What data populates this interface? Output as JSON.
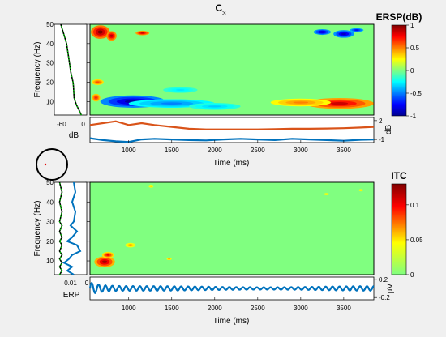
{
  "figure": {
    "title": "C3",
    "title_main": "C",
    "title_sub": "3"
  },
  "chart_data": [
    {
      "id": "ersp",
      "type": "heatmap",
      "title": "",
      "xlabel": "",
      "ylabel": "Frequency (Hz)",
      "xlim": [
        550,
        3850
      ],
      "ylim": [
        3,
        50
      ],
      "xticks": [
        1000,
        1500,
        2000,
        2500,
        3000,
        3500
      ],
      "yticks": [
        10,
        20,
        30,
        40,
        50
      ],
      "colorbar": {
        "title": "ERSP(dB)",
        "range": [
          -1,
          1
        ],
        "ticks": [
          "1",
          "0.5",
          "0",
          "-0.5",
          "-1"
        ],
        "tick_values": [
          1,
          0.5,
          0,
          -0.5,
          -1
        ]
      },
      "blobs": [
        {
          "t": 1050,
          "f": 10,
          "rt": 380,
          "rf": 3.2,
          "v": -0.95
        },
        {
          "t": 1500,
          "f": 9,
          "rt": 500,
          "rf": 2.2,
          "v": -0.5
        },
        {
          "t": 2000,
          "f": 7.5,
          "rt": 300,
          "rf": 1.8,
          "v": -0.35
        },
        {
          "t": 1600,
          "f": 16,
          "rt": 200,
          "rf": 1.5,
          "v": -0.3
        },
        {
          "t": 3450,
          "f": 9,
          "rt": 400,
          "rf": 2.8,
          "v": 0.85
        },
        {
          "t": 3000,
          "f": 9.5,
          "rt": 350,
          "rf": 2,
          "v": 0.5
        },
        {
          "t": 670,
          "f": 46,
          "rt": 110,
          "rf": 3.5,
          "v": 1
        },
        {
          "t": 800,
          "f": 44,
          "rt": 60,
          "rf": 2.5,
          "v": 0.9
        },
        {
          "t": 1160,
          "f": 45.5,
          "rt": 80,
          "rf": 1.2,
          "v": 0.85
        },
        {
          "t": 3250,
          "f": 46,
          "rt": 100,
          "rf": 1.5,
          "v": -0.9
        },
        {
          "t": 3500,
          "f": 45,
          "rt": 120,
          "rf": 2,
          "v": -0.9
        },
        {
          "t": 3650,
          "f": 47,
          "rt": 80,
          "rf": 1,
          "v": -0.8
        },
        {
          "t": 640,
          "f": 20,
          "rt": 70,
          "rf": 1.5,
          "v": 0.6
        },
        {
          "t": 620,
          "f": 12,
          "rt": 50,
          "rf": 2,
          "v": 0.7
        }
      ],
      "baseline_spectrum": {
        "xlabel": "dB",
        "xlim": [
          -80,
          10
        ],
        "xticks": [
          -60,
          0
        ],
        "freqs": [
          3,
          5,
          8,
          10,
          12,
          15,
          18,
          20,
          25,
          30,
          35,
          40,
          45,
          50
        ],
        "db": [
          -5,
          -10,
          -18,
          -22,
          -25,
          -26,
          -27,
          -28,
          -34,
          -38,
          -42,
          -46,
          -54,
          -62
        ]
      },
      "envelope": {
        "ylabel": "dB",
        "ylim": [
          -1.5,
          2.5
        ],
        "yticks": [
          2,
          -1
        ],
        "x": [
          550,
          700,
          850,
          1000,
          1150,
          1300,
          1500,
          1700,
          1900,
          2100,
          2300,
          2500,
          2700,
          2900,
          3100,
          3300,
          3500,
          3700,
          3850
        ],
        "series": [
          {
            "color": "#d95319",
            "values": [
              1.3,
              1.6,
              1.9,
              1.3,
              1.6,
              1.3,
              1.0,
              0.7,
              0.6,
              0.6,
              0.6,
              0.6,
              0.65,
              0.7,
              0.7,
              0.75,
              0.8,
              0.9,
              1.0
            ]
          },
          {
            "color": "#0072bd",
            "values": [
              -0.8,
              -1.1,
              -1.3,
              -1.4,
              -1.0,
              -0.9,
              -1.0,
              -1.1,
              -1.15,
              -1.0,
              -0.9,
              -1.0,
              -1.1,
              -0.9,
              -1.0,
              -1.1,
              -1.2,
              -1.05,
              -1.0
            ]
          }
        ]
      }
    },
    {
      "id": "itc",
      "type": "heatmap",
      "title": "",
      "xlabel": "Time (ms)",
      "ylabel": "Frequency (Hz)",
      "xlim": [
        550,
        3850
      ],
      "ylim": [
        3,
        50
      ],
      "xticks": [
        1000,
        1500,
        2000,
        2500,
        3000,
        3500
      ],
      "yticks": [
        10,
        20,
        30,
        40,
        50
      ],
      "colorbar": {
        "title": "ITC",
        "range": [
          0,
          0.13
        ],
        "ticks": [
          "0.1",
          "0.05",
          "0"
        ],
        "tick_values": [
          0.1,
          0.05,
          0
        ]
      },
      "blobs": [
        {
          "t": 720,
          "f": 9.5,
          "rt": 120,
          "rf": 2.8,
          "v": 0.12
        },
        {
          "t": 760,
          "f": 13,
          "rt": 70,
          "rf": 1.6,
          "v": 0.1
        },
        {
          "t": 1020,
          "f": 18,
          "rt": 60,
          "rf": 1.2,
          "v": 0.07
        },
        {
          "t": 1260,
          "f": 48,
          "rt": 30,
          "rf": 0.8,
          "v": 0.06
        },
        {
          "t": 1470,
          "f": 11,
          "rt": 30,
          "rf": 0.6,
          "v": 0.07
        },
        {
          "t": 3300,
          "f": 44,
          "rt": 30,
          "rf": 0.6,
          "v": 0.06
        },
        {
          "t": 3700,
          "f": 46,
          "rt": 25,
          "rf": 0.6,
          "v": 0.06
        }
      ],
      "itc_spectrum": {
        "xlabel": "",
        "xlim": [
          0,
          0.02
        ],
        "xticks": [
          0.01,
          0
        ],
        "freqs": [
          3,
          5,
          7,
          9,
          11,
          13,
          15,
          18,
          20,
          22,
          25,
          28,
          30,
          35,
          40,
          45,
          50
        ],
        "itc": [
          0.008,
          0.012,
          0.009,
          0.014,
          0.011,
          0.009,
          0.004,
          0.006,
          0.012,
          0.009,
          0.006,
          0.01,
          0.008,
          0.007,
          0.009,
          0.007,
          0.008
        ],
        "significance": [
          0.016,
          0.016,
          0.016,
          0.016,
          0.016,
          0.016,
          0.016,
          0.016,
          0.016,
          0.016,
          0.016,
          0.016,
          0.016,
          0.016,
          0.016,
          0.016,
          0.016
        ]
      },
      "erp": {
        "label": "ERP",
        "ylabel": "µV",
        "xlabel": "Time (ms)",
        "ylim": [
          -0.25,
          0.25
        ],
        "yticks": [
          0.2,
          -0.2
        ],
        "xticks": [
          1000,
          1500,
          2000,
          2500,
          3000,
          3500
        ],
        "color": "#0072bd",
        "cycle_ms": 80,
        "amplitude_start": 0.18,
        "amplitude_floor": 0.05,
        "decay_ms": 120
      }
    }
  ],
  "electrode_map": {
    "label": "head-map"
  },
  "colors": {
    "background": "#f0f0f0",
    "axes_bg": "#ffffff",
    "trace_blue": "#0072bd",
    "trace_orange": "#d95319",
    "spectrum_dots": "#00c800"
  }
}
